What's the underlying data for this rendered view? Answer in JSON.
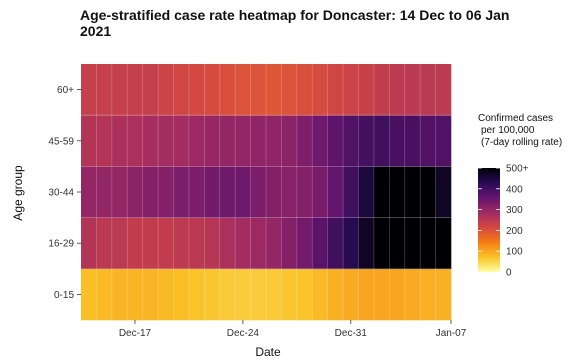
{
  "chart_data": {
    "type": "heatmap",
    "title_lines": [
      "Age-stratified case rate heatmap for Doncaster: 14 Dec to 06 Jan",
      "2021"
    ],
    "xlabel": "Date",
    "ylabel": "Age group",
    "x_ticks": [
      "Dec-17",
      "Dec-24",
      "Dec-31",
      "Jan-07"
    ],
    "dates": [
      "2020-12-14",
      "2020-12-15",
      "2020-12-16",
      "2020-12-17",
      "2020-12-18",
      "2020-12-19",
      "2020-12-20",
      "2020-12-21",
      "2020-12-22",
      "2020-12-23",
      "2020-12-24",
      "2020-12-25",
      "2020-12-26",
      "2020-12-27",
      "2020-12-28",
      "2020-12-29",
      "2020-12-30",
      "2020-12-31",
      "2021-01-01",
      "2021-01-02",
      "2021-01-03",
      "2021-01-04",
      "2021-01-05",
      "2021-01-06"
    ],
    "age_groups": [
      "0-15",
      "16-29",
      "30-44",
      "45-59",
      "60+"
    ],
    "legend": {
      "title_lines": [
        "Confirmed cases",
        "per 100,000",
        "(7-day rolling rate)"
      ],
      "ticks": [
        "0",
        "100",
        "200",
        "300",
        "400",
        "500+"
      ],
      "max": 500
    },
    "values": {
      "0-15": [
        75,
        80,
        85,
        85,
        85,
        80,
        75,
        70,
        65,
        62,
        60,
        60,
        62,
        65,
        70,
        80,
        90,
        95,
        100,
        100,
        100,
        95,
        90,
        90
      ],
      "16-29": [
        260,
        250,
        250,
        240,
        240,
        240,
        245,
        250,
        255,
        270,
        280,
        290,
        300,
        320,
        340,
        370,
        400,
        430,
        470,
        500,
        500,
        500,
        500,
        500
      ],
      "30-44": [
        300,
        300,
        300,
        310,
        320,
        320,
        330,
        330,
        340,
        345,
        345,
        330,
        320,
        315,
        320,
        335,
        360,
        400,
        450,
        500,
        500,
        500,
        500,
        470
      ],
      "45-59": [
        260,
        260,
        270,
        270,
        275,
        280,
        280,
        290,
        295,
        300,
        300,
        305,
        305,
        310,
        325,
        345,
        365,
        380,
        395,
        400,
        390,
        390,
        380,
        380
      ],
      "60+": [
        235,
        235,
        235,
        235,
        235,
        225,
        220,
        215,
        210,
        205,
        200,
        200,
        195,
        200,
        205,
        210,
        220,
        225,
        230,
        240,
        245,
        250,
        250,
        245
      ]
    },
    "colors": [
      "#fcffa4",
      "#fac228",
      "#f57d15",
      "#d44842",
      "#9f2a63",
      "#65156e",
      "#280b53",
      "#000004"
    ]
  }
}
